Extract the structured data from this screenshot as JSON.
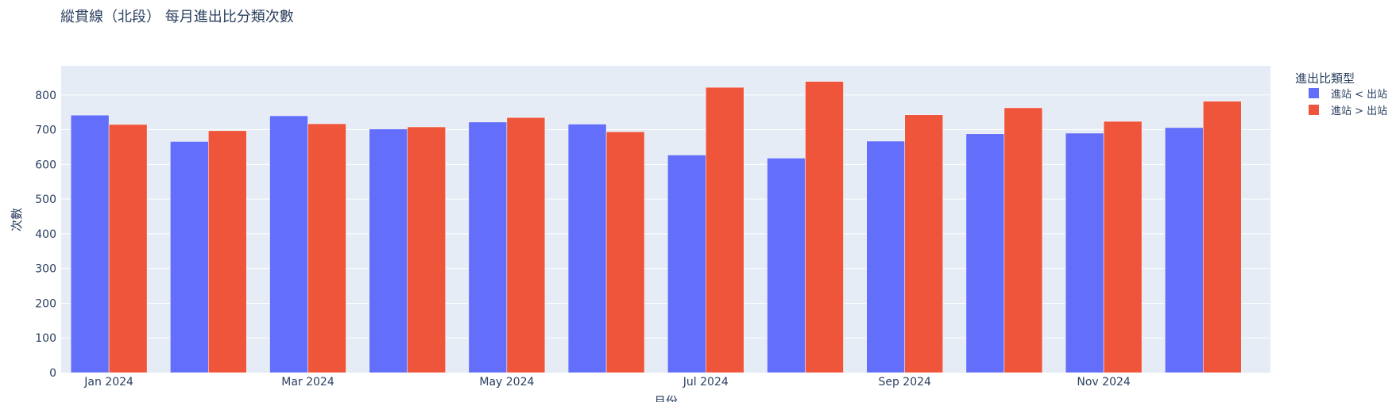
{
  "chart_data": {
    "type": "bar",
    "title": "縱貫線（北段） 每月進出比分類次數",
    "xlabel": "月份",
    "ylabel": "次數",
    "categories": [
      "2024-01",
      "2024-02",
      "2024-03",
      "2024-04",
      "2024-05",
      "2024-06",
      "2024-07",
      "2024-08",
      "2024-09",
      "2024-10",
      "2024-11",
      "2024-12"
    ],
    "x_tick_labels": [
      "Jan 2024",
      "",
      "Mar 2024",
      "",
      "May 2024",
      "",
      "Jul 2024",
      "",
      "Sep 2024",
      "",
      "Nov 2024",
      ""
    ],
    "y_ticks": [
      0,
      100,
      200,
      300,
      400,
      500,
      600,
      700,
      800
    ],
    "ylim": [
      0,
      885
    ],
    "legend_title": "進出比類型",
    "legend_position": "right",
    "grid": true,
    "series": [
      {
        "name": "進站 < 出站",
        "color": "#636efa",
        "values": [
          742,
          666,
          740,
          702,
          722,
          716,
          627,
          618,
          667,
          688,
          690,
          706
        ]
      },
      {
        "name": "進站 > 出站",
        "color": "#ef553b",
        "values": [
          715,
          697,
          717,
          708,
          735,
          694,
          822,
          839,
          743,
          763,
          724,
          782
        ]
      }
    ],
    "plot_bg": "#e5ecf6"
  }
}
